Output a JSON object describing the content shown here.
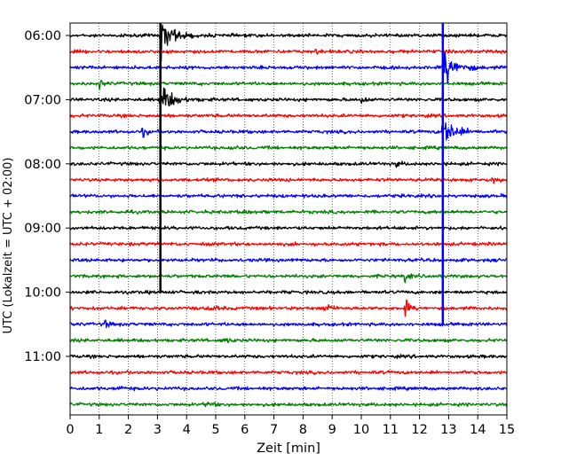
{
  "chart_data": {
    "type": "line",
    "xlabel": "Zeit  [min]",
    "ylabel": "UTC (Lokalzeit = UTC + 02:00)",
    "xlim": [
      0,
      15
    ],
    "x_ticks": [
      "0",
      "1",
      "2",
      "3",
      "4",
      "5",
      "6",
      "7",
      "8",
      "9",
      "10",
      "11",
      "12",
      "13",
      "14",
      "15"
    ],
    "y_tick_labels": [
      "06:00",
      "07:00",
      "08:00",
      "09:00",
      "10:00",
      "11:00"
    ],
    "trace_interval_min": 15,
    "traces_per_hour": 4,
    "n_traces": 24,
    "grid": "vertical dotted at each minute",
    "color_cycle": [
      "#000000",
      "#ff0000",
      "#0000ff",
      "#008000"
    ],
    "events": [
      {
        "trace": 0,
        "time_min": 3.1,
        "amplitude": 20,
        "note": "clipped spike (extends beyond trace)"
      },
      {
        "trace": 4,
        "time_min": 3.1,
        "amplitude": 16,
        "note": "large earthquake coda"
      },
      {
        "trace": 4,
        "time_min": 10.0,
        "amplitude": 4
      },
      {
        "trace": 6,
        "time_min": 2.5,
        "amplitude": 5
      },
      {
        "trace": 7,
        "time_min": 5.5,
        "amplitude": 3
      },
      {
        "trace": 3,
        "time_min": 1.0,
        "amplitude": 4
      },
      {
        "trace": 1,
        "time_min": 8.4,
        "amplitude": 3
      },
      {
        "trace": 2,
        "time_min": 12.8,
        "amplitude": 20,
        "note": "clipped spike (extends beyond trace)"
      },
      {
        "trace": 6,
        "time_min": 12.8,
        "amplitude": 17,
        "note": "large earthquake coda"
      },
      {
        "trace": 8,
        "time_min": 11.2,
        "amplitude": 3
      },
      {
        "trace": 9,
        "time_min": 14.5,
        "amplitude": 3
      },
      {
        "trace": 11,
        "time_min": 6.0,
        "amplitude": 3
      },
      {
        "trace": 15,
        "time_min": 11.5,
        "amplitude": 6
      },
      {
        "trace": 17,
        "time_min": 4.8,
        "amplitude": 6
      },
      {
        "trace": 17,
        "time_min": 8.7,
        "amplitude": 11
      },
      {
        "trace": 17,
        "time_min": 11.5,
        "amplitude": 9
      },
      {
        "trace": 18,
        "time_min": 1.2,
        "amplitude": 4
      },
      {
        "trace": 19,
        "time_min": 5.3,
        "amplitude": 4
      },
      {
        "trace": 22,
        "time_min": 1.6,
        "amplitude": 5
      },
      {
        "trace": 23,
        "time_min": 4.7,
        "amplitude": 5
      }
    ]
  }
}
